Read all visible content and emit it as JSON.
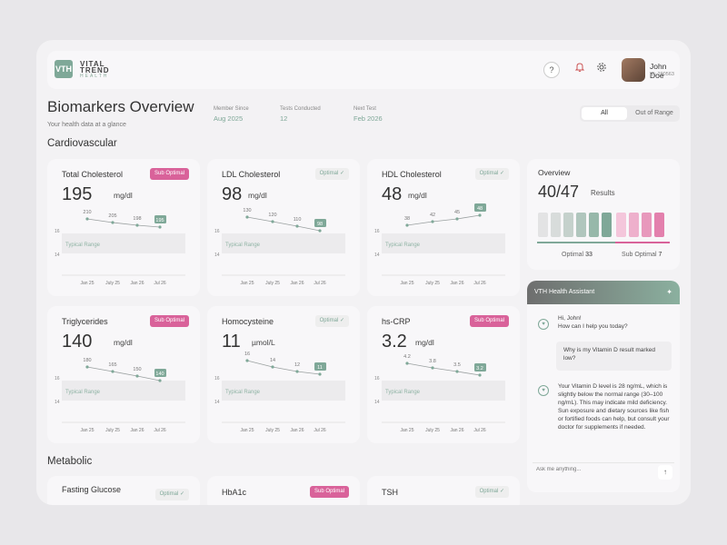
{
  "brand": {
    "mark": "VTH",
    "line1": "VITAL",
    "line2": "TREND",
    "line3": "HEALTH"
  },
  "header": {
    "help_icon": "question-icon",
    "notify_icon": "bell-icon",
    "settings_icon": "gear-icon",
    "user_name": "John Doe",
    "user_id": "ID: 290563"
  },
  "page": {
    "title": "Biomarkers Overview",
    "subtitle": "Your health data at a glance",
    "meta": [
      {
        "label": "Member Since",
        "value": "Aug 2025"
      },
      {
        "label": "Tests Conducted",
        "value": "12"
      },
      {
        "label": "Next Test",
        "value": "Feb 2026"
      }
    ],
    "filter": {
      "all": "All",
      "out_of_range": "Out of Range"
    }
  },
  "sections": {
    "cardiovascular": "Cardiovascular",
    "metabolic": "Metabolic"
  },
  "colors": {
    "accent": "#7fa898",
    "alert": "#d9629a"
  },
  "dates": [
    "Jan 25",
    "July 25",
    "Jan 26",
    "Jul 26"
  ],
  "axis": {
    "top": "16",
    "bottom": "14",
    "range": "Typical Range"
  },
  "cards": [
    {
      "title": "Total Cholesterol",
      "value": "195",
      "unit": "mg/dl",
      "status": "Sub Optimal",
      "alert": true,
      "points": [
        "210",
        "205",
        "198",
        "195"
      ]
    },
    {
      "title": "LDL Cholesterol",
      "value": "98",
      "unit": "mg/dl",
      "status": "Optimal ✓",
      "alert": false,
      "points": [
        "130",
        "120",
        "110",
        "98"
      ]
    },
    {
      "title": "HDL Cholesterol",
      "value": "48",
      "unit": "mg/dl",
      "status": "Optimal ✓",
      "alert": false,
      "points": [
        "38",
        "42",
        "45",
        "48"
      ]
    },
    {
      "title": "Triglycerides",
      "value": "140",
      "unit": "mg/dl",
      "status": "Sub Optimal",
      "alert": true,
      "points": [
        "180",
        "165",
        "150",
        "140"
      ]
    },
    {
      "title": "Homocysteine",
      "value": "11",
      "unit": "µmol/L",
      "status": "Optimal ✓",
      "alert": false,
      "points": [
        "16",
        "14",
        "12",
        "11"
      ]
    },
    {
      "title": "hs-CRP",
      "value": "3.2",
      "unit": "mg/dl",
      "status": "Sub Optimal",
      "alert": true,
      "points": [
        "4.2",
        "3.8",
        "3.5",
        "3.2"
      ]
    }
  ],
  "metabolic": [
    {
      "title": "Fasting Glucose",
      "status": "Optimal ✓"
    },
    {
      "title": "HbA1c",
      "status": "Sub Optimal"
    },
    {
      "title": "TSH",
      "status": "Optimal ✓"
    }
  ],
  "overview": {
    "title": "Overview",
    "value": "40/47",
    "results_label": "Results",
    "optimal_label": "Optimal",
    "optimal_count": "33",
    "sub_label": "Sub Optimal",
    "sub_count": "7"
  },
  "assistant": {
    "title": "VTH Health Assistant",
    "greeting_1": "Hi, John!",
    "greeting_2": "How can I help you today?",
    "user_q": "Why is my Vitamin D result marked low?",
    "answer": "Your Vitamin D level is 28 ng/mL, which is slightly below the normal range (30–100 ng/mL). This may indicate mild deficiency. Sun exposure and dietary sources like fish or fortified foods can help, but consult your doctor for supplements if needed.",
    "placeholder": "Ask me anything..."
  }
}
